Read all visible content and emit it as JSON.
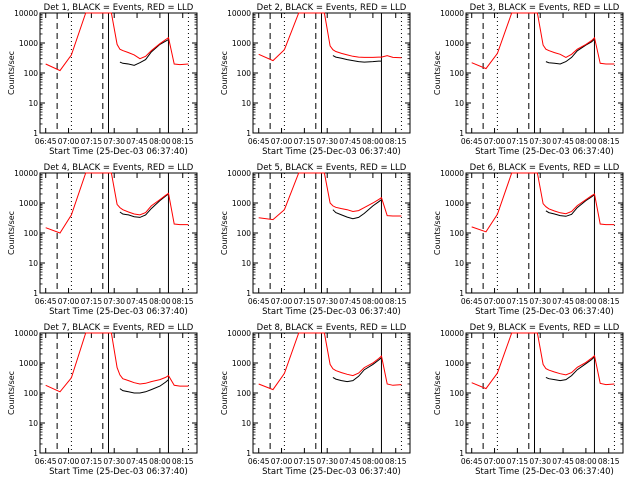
{
  "chart_data": [
    {
      "type": "line",
      "title": "Det 1, BLACK = Events, RED = LLD",
      "xlabel": "Start Time (25-Dec-03 06:37:40)",
      "ylabel": "Counts/sec",
      "xticks": [
        "06:45",
        "07:00",
        "07:15",
        "07:30",
        "07:45",
        "08:00",
        "08:15"
      ],
      "yticks": [
        "1",
        "10",
        "100",
        "1000",
        "10000"
      ],
      "ylim": [
        1,
        10000
      ],
      "yscale": "log",
      "x": [
        0,
        5,
        9,
        14,
        19,
        23,
        25,
        26,
        27,
        29,
        31,
        33,
        35,
        37,
        40,
        42,
        43,
        45,
        47,
        50
      ],
      "series": [
        {
          "name": "Events",
          "color": "#000000",
          "values": [
            null,
            null,
            null,
            null,
            null,
            null,
            null,
            230,
            210,
            200,
            180,
            220,
            280,
            500,
            900,
            1150,
            1300,
            null,
            null,
            null
          ]
        },
        {
          "name": "LLD",
          "color": "#ff0000",
          "values": [
            200,
            120,
            400,
            10000,
            10000,
            10000,
            900,
            620,
            560,
            480,
            400,
            300,
            360,
            560,
            950,
            1300,
            1500,
            200,
            190,
            200
          ]
        }
      ]
    },
    {
      "type": "line",
      "title": "Det 2, BLACK = Events, RED = LLD",
      "xlabel": "Start Time (25-Dec-03 06:37:40)",
      "ylabel": "Counts/sec",
      "xticks": [
        "06:45",
        "07:00",
        "07:15",
        "07:30",
        "07:45",
        "08:00",
        "08:15"
      ],
      "yticks": [
        "1",
        "10",
        "100",
        "1000",
        "10000"
      ],
      "ylim": [
        1,
        10000
      ],
      "yscale": "log",
      "x": [
        0,
        5,
        9,
        14,
        19,
        23,
        25,
        26,
        27,
        29,
        31,
        33,
        35,
        37,
        40,
        42,
        43,
        45,
        47,
        50
      ],
      "series": [
        {
          "name": "Events",
          "color": "#000000",
          "values": [
            null,
            null,
            null,
            null,
            null,
            null,
            null,
            380,
            340,
            310,
            280,
            260,
            240,
            230,
            240,
            250,
            250,
            null,
            null,
            null
          ]
        },
        {
          "name": "LLD",
          "color": "#ff0000",
          "values": [
            420,
            260,
            600,
            10000,
            10000,
            10000,
            800,
            600,
            520,
            450,
            400,
            360,
            340,
            330,
            330,
            340,
            340,
            380,
            330,
            320
          ]
        }
      ]
    },
    {
      "type": "line",
      "title": "Det 3, BLACK = Events, RED = LLD",
      "xlabel": "Start Time (25-Dec-03 06:37:40)",
      "ylabel": "Counts/sec",
      "xticks": [
        "06:45",
        "07:00",
        "07:15",
        "07:30",
        "07:45",
        "08:00",
        "08:15"
      ],
      "yticks": [
        "1",
        "10",
        "100",
        "1000",
        "10000"
      ],
      "ylim": [
        1,
        10000
      ],
      "yscale": "log",
      "x": [
        0,
        5,
        9,
        14,
        19,
        23,
        25,
        26,
        27,
        29,
        31,
        33,
        35,
        37,
        40,
        42,
        43,
        45,
        47,
        50
      ],
      "series": [
        {
          "name": "Events",
          "color": "#000000",
          "values": [
            null,
            null,
            null,
            null,
            null,
            null,
            null,
            240,
            220,
            210,
            200,
            240,
            330,
            550,
            850,
            1100,
            1350,
            null,
            null,
            null
          ]
        },
        {
          "name": "LLD",
          "color": "#ff0000",
          "values": [
            220,
            140,
            450,
            10000,
            10000,
            10000,
            850,
            620,
            560,
            480,
            420,
            330,
            420,
            620,
            900,
            1200,
            1500,
            210,
            200,
            200
          ]
        }
      ]
    },
    {
      "type": "line",
      "title": "Det 4, BLACK = Events, RED = LLD",
      "xlabel": "Start Time (25-Dec-03 06:37:40)",
      "ylabel": "Counts/sec",
      "xticks": [
        "06:45",
        "07:00",
        "07:15",
        "07:30",
        "07:45",
        "08:00",
        "08:15"
      ],
      "yticks": [
        "1",
        "10",
        "100",
        "1000",
        "10000"
      ],
      "ylim": [
        1,
        10000
      ],
      "yscale": "log",
      "x": [
        0,
        5,
        9,
        14,
        19,
        23,
        25,
        26,
        27,
        29,
        31,
        33,
        35,
        37,
        40,
        42,
        43,
        45,
        47,
        50
      ],
      "series": [
        {
          "name": "Events",
          "color": "#000000",
          "values": [
            null,
            null,
            null,
            null,
            null,
            null,
            null,
            500,
            430,
            400,
            350,
            330,
            400,
            650,
            1200,
            1700,
            2000,
            null,
            null,
            null
          ]
        },
        {
          "name": "LLD",
          "color": "#ff0000",
          "values": [
            150,
            100,
            400,
            10000,
            10000,
            10000,
            900,
            700,
            600,
            500,
            430,
            400,
            480,
            800,
            1300,
            1800,
            2100,
            200,
            190,
            190
          ]
        }
      ]
    },
    {
      "type": "line",
      "title": "Det 5, BLACK = Events, RED = LLD",
      "xlabel": "Start Time (25-Dec-03 06:37:40)",
      "ylabel": "Counts/sec",
      "xticks": [
        "06:45",
        "07:00",
        "07:15",
        "07:30",
        "07:45",
        "08:00",
        "08:15"
      ],
      "yticks": [
        "1",
        "10",
        "100",
        "1000",
        "10000"
      ],
      "ylim": [
        1,
        10000
      ],
      "yscale": "log",
      "x": [
        0,
        5,
        9,
        14,
        19,
        23,
        25,
        26,
        27,
        29,
        31,
        33,
        35,
        37,
        40,
        42,
        43,
        45,
        47,
        50
      ],
      "series": [
        {
          "name": "Events",
          "color": "#000000",
          "values": [
            null,
            null,
            null,
            null,
            null,
            null,
            null,
            600,
            480,
            400,
            340,
            300,
            330,
            450,
            800,
            1100,
            1300,
            null,
            null,
            null
          ]
        },
        {
          "name": "LLD",
          "color": "#ff0000",
          "values": [
            320,
            280,
            600,
            10000,
            10000,
            10000,
            1000,
            800,
            720,
            650,
            600,
            520,
            560,
            700,
            1000,
            1300,
            1500,
            380,
            370,
            370
          ]
        }
      ]
    },
    {
      "type": "line",
      "title": "Det 6, BLACK = Events, RED = LLD",
      "xlabel": "Start Time (25-Dec-03 06:37:40)",
      "ylabel": "Counts/sec",
      "xticks": [
        "06:45",
        "07:00",
        "07:15",
        "07:30",
        "07:45",
        "08:00",
        "08:15"
      ],
      "yticks": [
        "1",
        "10",
        "100",
        "1000",
        "10000"
      ],
      "ylim": [
        1,
        10000
      ],
      "yscale": "log",
      "x": [
        0,
        5,
        9,
        14,
        19,
        23,
        25,
        26,
        27,
        29,
        31,
        33,
        35,
        37,
        40,
        42,
        43,
        45,
        47,
        50
      ],
      "series": [
        {
          "name": "Events",
          "color": "#000000",
          "values": [
            null,
            null,
            null,
            null,
            null,
            null,
            null,
            550,
            480,
            430,
            380,
            360,
            420,
            700,
            1200,
            1600,
            1900,
            null,
            null,
            null
          ]
        },
        {
          "name": "LLD",
          "color": "#ff0000",
          "values": [
            160,
            110,
            420,
            10000,
            10000,
            10000,
            950,
            750,
            640,
            540,
            470,
            440,
            520,
            820,
            1300,
            1750,
            2000,
            200,
            190,
            190
          ]
        }
      ]
    },
    {
      "type": "line",
      "title": "Det 7, BLACK = Events, RED = LLD",
      "xlabel": "Start Time (25-Dec-03 06:37:40)",
      "ylabel": "Counts/sec",
      "xticks": [
        "06:45",
        "07:00",
        "07:15",
        "07:30",
        "07:45",
        "08:00",
        "08:15"
      ],
      "yticks": [
        "1",
        "10",
        "100",
        "1000",
        "10000"
      ],
      "ylim": [
        1,
        10000
      ],
      "yscale": "log",
      "x": [
        0,
        5,
        9,
        14,
        19,
        23,
        25,
        26,
        27,
        29,
        31,
        33,
        35,
        37,
        40,
        42,
        43,
        45,
        47,
        50
      ],
      "series": [
        {
          "name": "Events",
          "color": "#000000",
          "values": [
            null,
            null,
            null,
            null,
            null,
            null,
            null,
            140,
            120,
            110,
            100,
            100,
            110,
            130,
            170,
            230,
            280,
            null,
            null,
            null
          ]
        },
        {
          "name": "LLD",
          "color": "#ff0000",
          "values": [
            180,
            110,
            320,
            10000,
            10000,
            10000,
            700,
            400,
            300,
            260,
            220,
            200,
            210,
            240,
            280,
            330,
            380,
            180,
            170,
            170
          ]
        }
      ]
    },
    {
      "type": "line",
      "title": "Det 8, BLACK = Events, RED = LLD",
      "xlabel": "Start Time (25-Dec-03 06:37:40)",
      "ylabel": "Counts/sec",
      "xticks": [
        "06:45",
        "07:00",
        "07:15",
        "07:30",
        "07:45",
        "08:00",
        "08:15"
      ],
      "yticks": [
        "1",
        "10",
        "100",
        "1000",
        "10000"
      ],
      "ylim": [
        1,
        10000
      ],
      "yscale": "log",
      "x": [
        0,
        5,
        9,
        14,
        19,
        23,
        25,
        26,
        27,
        29,
        31,
        33,
        35,
        37,
        40,
        42,
        43,
        45,
        47,
        50
      ],
      "series": [
        {
          "name": "Events",
          "color": "#000000",
          "values": [
            null,
            null,
            null,
            null,
            null,
            null,
            null,
            330,
            290,
            260,
            240,
            260,
            360,
            600,
            900,
            1250,
            1500,
            null,
            null,
            null
          ]
        },
        {
          "name": "LLD",
          "color": "#ff0000",
          "values": [
            200,
            130,
            450,
            10000,
            10000,
            10000,
            900,
            640,
            560,
            480,
            420,
            380,
            460,
            700,
            1000,
            1400,
            1700,
            200,
            180,
            190
          ]
        }
      ]
    },
    {
      "type": "line",
      "title": "Det 9, BLACK = Events, RED = LLD",
      "xlabel": "Start Time (25-Dec-03 06:37:40)",
      "ylabel": "Counts/sec",
      "xticks": [
        "06:45",
        "07:00",
        "07:15",
        "07:30",
        "07:45",
        "08:00",
        "08:15"
      ],
      "yticks": [
        "1",
        "10",
        "100",
        "1000",
        "10000"
      ],
      "ylim": [
        1,
        10000
      ],
      "yscale": "log",
      "x": [
        0,
        5,
        9,
        14,
        19,
        23,
        25,
        26,
        27,
        29,
        31,
        33,
        35,
        37,
        40,
        42,
        43,
        45,
        47,
        50
      ],
      "series": [
        {
          "name": "Events",
          "color": "#000000",
          "values": [
            null,
            null,
            null,
            null,
            null,
            null,
            null,
            330,
            300,
            280,
            260,
            280,
            380,
            600,
            950,
            1300,
            1600,
            null,
            null,
            null
          ]
        },
        {
          "name": "LLD",
          "color": "#ff0000",
          "values": [
            220,
            140,
            460,
            10000,
            10000,
            10000,
            900,
            650,
            580,
            500,
            440,
            400,
            480,
            720,
            1050,
            1450,
            1750,
            210,
            190,
            200
          ]
        }
      ]
    }
  ]
}
